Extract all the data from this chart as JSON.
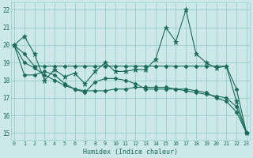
{
  "xlabel": "Humidex (Indice chaleur)",
  "bg_color": "#cce8e8",
  "grid_color": "#99cccc",
  "line_color": "#1a6b5a",
  "xlim": [
    -0.3,
    23.3
  ],
  "ylim": [
    14.6,
    22.4
  ],
  "yticks": [
    15,
    16,
    17,
    18,
    19,
    20,
    21,
    22
  ],
  "xticks": [
    0,
    1,
    2,
    3,
    4,
    5,
    6,
    7,
    8,
    9,
    10,
    11,
    12,
    13,
    14,
    15,
    16,
    17,
    18,
    19,
    20,
    21,
    22,
    23
  ],
  "series": [
    {
      "y": [
        20.0,
        20.5,
        19.5,
        18.0,
        18.6,
        18.2,
        18.4,
        17.8,
        18.5,
        19.0,
        18.5,
        18.5,
        18.6,
        18.6,
        19.2,
        21.0,
        20.2,
        22.0,
        19.5,
        19.0,
        18.7,
        18.8,
        16.8,
        15.0
      ],
      "marker": "*",
      "ms": 4.5
    },
    {
      "y": [
        20.0,
        19.5,
        18.8,
        18.8,
        18.8,
        18.8,
        18.8,
        18.8,
        18.8,
        18.8,
        18.8,
        18.8,
        18.8,
        18.8,
        18.8,
        18.8,
        18.8,
        18.8,
        18.8,
        18.8,
        18.8,
        18.8,
        17.5,
        15.0
      ],
      "marker": "D",
      "ms": 2.5
    },
    {
      "y": [
        20.0,
        19.0,
        18.7,
        18.3,
        18.0,
        17.7,
        17.5,
        17.4,
        17.4,
        17.4,
        17.5,
        17.5,
        17.6,
        17.6,
        17.6,
        17.6,
        17.5,
        17.4,
        17.3,
        17.2,
        17.1,
        17.0,
        16.5,
        15.0
      ],
      "marker": "D",
      "ms": 2.5
    },
    {
      "y": [
        20.0,
        18.3,
        18.3,
        18.5,
        18.3,
        17.8,
        17.5,
        17.3,
        17.9,
        18.1,
        18.1,
        18.0,
        17.8,
        17.5,
        17.5,
        17.5,
        17.5,
        17.5,
        17.4,
        17.3,
        17.0,
        16.8,
        16.2,
        15.0
      ],
      "marker": "D",
      "ms": 2.5
    }
  ]
}
